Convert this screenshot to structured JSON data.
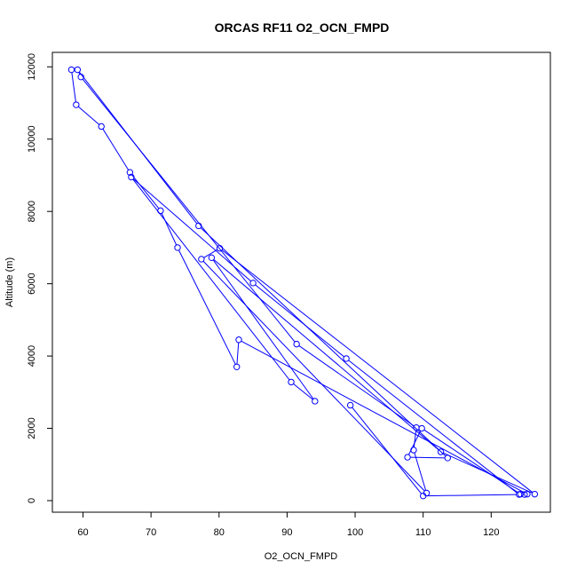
{
  "chart_data": {
    "type": "line",
    "title": "ORCAS RF11 O2_OCN_FMPD",
    "xlabel": "O2_OCN_FMPD",
    "ylabel": "Altitude (m)",
    "xlim": [
      55.5,
      128.7
    ],
    "ylim": [
      -320,
      12400
    ],
    "xticks": [
      60,
      70,
      80,
      90,
      100,
      110,
      120
    ],
    "yticks": [
      0,
      2000,
      4000,
      6000,
      8000,
      10000,
      12000
    ],
    "xtick_labels": [
      "60",
      "70",
      "80",
      "90",
      "100",
      "110",
      "120"
    ],
    "ytick_labels": [
      "0",
      "2000",
      "4000",
      "6000",
      "8000",
      "10000",
      "12000"
    ],
    "grid": false,
    "legend": "none",
    "marker": "open-circle",
    "color": "#0000ff",
    "series": [
      {
        "x": [
          58.3,
          59.0,
          62.7,
          66.9,
          71.4,
          73.9,
          82.6,
          82.9,
          125.3,
          124.9,
          124.3,
          109.8,
          107.7,
          113.6,
          77.0,
          59.2,
          59.7,
          91.4,
          109.0,
          108.6,
          110.5,
          77.4,
          80.1,
          126.4,
          112.6,
          78.9,
          94.1,
          90.6,
          67.1,
          85.0,
          98.7,
          124.1,
          110.0,
          99.3
        ],
        "y": [
          11920,
          10950,
          10350,
          9080,
          8020,
          7000,
          3700,
          4450,
          180,
          170,
          180,
          2000,
          1200,
          1180,
          7600,
          11920,
          11720,
          4330,
          2020,
          1400,
          210,
          6680,
          6980,
          180,
          1350,
          6720,
          2750,
          3280,
          8950,
          6020,
          3930,
          170,
          130,
          2640
        ]
      }
    ]
  }
}
